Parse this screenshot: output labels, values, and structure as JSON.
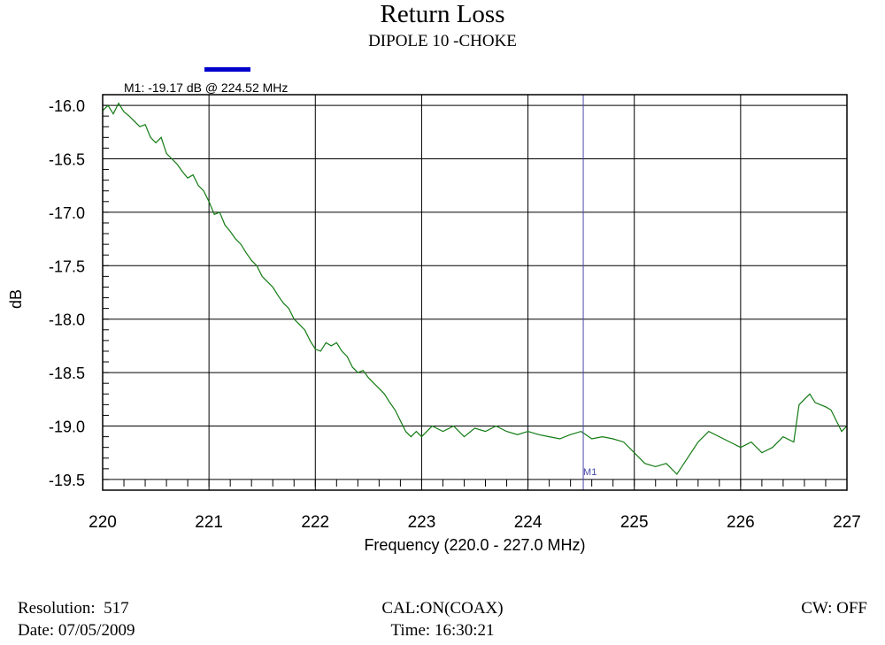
{
  "header": {
    "title": "Return Loss",
    "subtitle": "DIPOLE 10 -CHOKE"
  },
  "marker": {
    "readout": "M1: -19.17 dB @ 224.52 MHz",
    "label": "M1",
    "freq_mhz": 224.52,
    "value_db": -19.17,
    "legend_color": "#0000cc",
    "line_color": "#4a4aa8"
  },
  "footer": {
    "resolution_label": "Resolution:",
    "resolution_value": "517",
    "date_label": "Date:",
    "date_value": "07/05/2009",
    "cal": "CAL:ON(COAX)",
    "time_label": "Time:",
    "time_value": "16:30:21",
    "cw": "CW: OFF"
  },
  "chart_data": {
    "type": "line",
    "xlabel": "Frequency (220.0 - 227.0 MHz)",
    "ylabel": "dB",
    "xlim": [
      220,
      227
    ],
    "ylim": [
      -19.6,
      -15.9
    ],
    "x_ticks": [
      "220",
      "221",
      "222",
      "223",
      "224",
      "225",
      "226",
      "227"
    ],
    "y_ticks": [
      "-16.0",
      "-16.5",
      "-17.0",
      "-17.5",
      "-18.0",
      "-18.5",
      "-19.0",
      "-19.5"
    ],
    "grid": true,
    "line_color": "#117a11",
    "series": [
      {
        "points": [
          [
            220.0,
            -16.05
          ],
          [
            220.05,
            -16.0
          ],
          [
            220.1,
            -16.08
          ],
          [
            220.15,
            -15.98
          ],
          [
            220.2,
            -16.06
          ],
          [
            220.25,
            -16.1
          ],
          [
            220.3,
            -16.15
          ],
          [
            220.35,
            -16.2
          ],
          [
            220.4,
            -16.18
          ],
          [
            220.45,
            -16.3
          ],
          [
            220.5,
            -16.35
          ],
          [
            220.55,
            -16.3
          ],
          [
            220.6,
            -16.45
          ],
          [
            220.65,
            -16.5
          ],
          [
            220.7,
            -16.55
          ],
          [
            220.75,
            -16.62
          ],
          [
            220.8,
            -16.68
          ],
          [
            220.85,
            -16.65
          ],
          [
            220.9,
            -16.75
          ],
          [
            220.95,
            -16.8
          ],
          [
            221.0,
            -16.9
          ],
          [
            221.05,
            -17.02
          ],
          [
            221.1,
            -17.0
          ],
          [
            221.15,
            -17.12
          ],
          [
            221.2,
            -17.18
          ],
          [
            221.25,
            -17.25
          ],
          [
            221.3,
            -17.3
          ],
          [
            221.35,
            -17.38
          ],
          [
            221.4,
            -17.45
          ],
          [
            221.45,
            -17.5
          ],
          [
            221.5,
            -17.6
          ],
          [
            221.55,
            -17.65
          ],
          [
            221.6,
            -17.7
          ],
          [
            221.65,
            -17.78
          ],
          [
            221.7,
            -17.85
          ],
          [
            221.75,
            -17.9
          ],
          [
            221.8,
            -18.0
          ],
          [
            221.85,
            -18.05
          ],
          [
            221.9,
            -18.1
          ],
          [
            221.95,
            -18.2
          ],
          [
            222.0,
            -18.28
          ],
          [
            222.05,
            -18.3
          ],
          [
            222.1,
            -18.22
          ],
          [
            222.15,
            -18.25
          ],
          [
            222.2,
            -18.22
          ],
          [
            222.25,
            -18.3
          ],
          [
            222.3,
            -18.35
          ],
          [
            222.35,
            -18.45
          ],
          [
            222.4,
            -18.5
          ],
          [
            222.45,
            -18.48
          ],
          [
            222.5,
            -18.55
          ],
          [
            222.55,
            -18.6
          ],
          [
            222.6,
            -18.65
          ],
          [
            222.65,
            -18.7
          ],
          [
            222.7,
            -18.78
          ],
          [
            222.75,
            -18.85
          ],
          [
            222.8,
            -18.95
          ],
          [
            222.85,
            -19.05
          ],
          [
            222.9,
            -19.1
          ],
          [
            222.95,
            -19.05
          ],
          [
            223.0,
            -19.1
          ],
          [
            223.1,
            -19.0
          ],
          [
            223.2,
            -19.05
          ],
          [
            223.3,
            -19.0
          ],
          [
            223.4,
            -19.1
          ],
          [
            223.5,
            -19.02
          ],
          [
            223.6,
            -19.05
          ],
          [
            223.7,
            -19.0
          ],
          [
            223.8,
            -19.05
          ],
          [
            223.9,
            -19.08
          ],
          [
            224.0,
            -19.05
          ],
          [
            224.1,
            -19.08
          ],
          [
            224.2,
            -19.1
          ],
          [
            224.3,
            -19.12
          ],
          [
            224.4,
            -19.08
          ],
          [
            224.5,
            -19.05
          ],
          [
            224.6,
            -19.12
          ],
          [
            224.7,
            -19.1
          ],
          [
            224.8,
            -19.12
          ],
          [
            224.9,
            -19.15
          ],
          [
            225.0,
            -19.25
          ],
          [
            225.1,
            -19.35
          ],
          [
            225.2,
            -19.38
          ],
          [
            225.3,
            -19.35
          ],
          [
            225.4,
            -19.45
          ],
          [
            225.5,
            -19.3
          ],
          [
            225.6,
            -19.15
          ],
          [
            225.7,
            -19.05
          ],
          [
            225.8,
            -19.1
          ],
          [
            225.9,
            -19.15
          ],
          [
            226.0,
            -19.2
          ],
          [
            226.1,
            -19.15
          ],
          [
            226.2,
            -19.25
          ],
          [
            226.3,
            -19.2
          ],
          [
            226.4,
            -19.1
          ],
          [
            226.5,
            -19.15
          ],
          [
            226.55,
            -18.8
          ],
          [
            226.6,
            -18.75
          ],
          [
            226.65,
            -18.7
          ],
          [
            226.7,
            -18.78
          ],
          [
            226.75,
            -18.8
          ],
          [
            226.8,
            -18.82
          ],
          [
            226.85,
            -18.85
          ],
          [
            226.9,
            -18.95
          ],
          [
            226.95,
            -19.05
          ],
          [
            227.0,
            -19.0
          ]
        ]
      }
    ]
  }
}
